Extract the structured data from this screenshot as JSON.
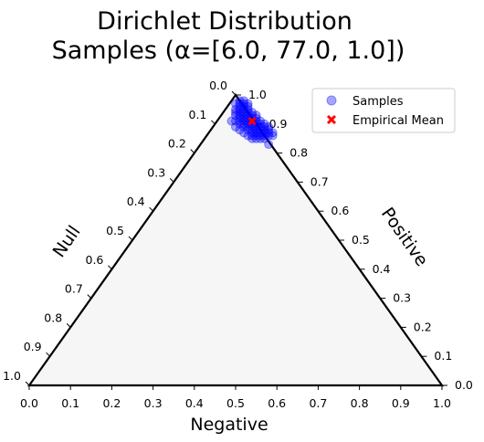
{
  "chart_data": {
    "type": "scatter",
    "title_lines": [
      "Dirichlet Distribution",
      "Samples (α=[6.0, 77.0, 1.0])"
    ],
    "bottom_axis_label": "Negative",
    "left_axis_label": "Null",
    "right_axis_label": "Positive",
    "tick_values": [
      0.0,
      0.1,
      0.2,
      0.3,
      0.4,
      0.5,
      0.6,
      0.7,
      0.8,
      0.9,
      1.0
    ],
    "tick_labels": [
      "0.0",
      "0.1",
      "0.2",
      "0.3",
      "0.4",
      "0.5",
      "0.6",
      "0.7",
      "0.8",
      "0.9",
      "1.0"
    ],
    "series": [
      {
        "name": "Samples",
        "color": "#0000ff",
        "marker": "circle",
        "points": [
          {
            "x": 0.52,
            "y": 0.91
          },
          {
            "x": 0.53,
            "y": 0.92
          },
          {
            "x": 0.51,
            "y": 0.94
          },
          {
            "x": 0.54,
            "y": 0.9
          },
          {
            "x": 0.55,
            "y": 0.89
          },
          {
            "x": 0.52,
            "y": 0.93
          },
          {
            "x": 0.53,
            "y": 0.95
          },
          {
            "x": 0.51,
            "y": 0.96
          },
          {
            "x": 0.52,
            "y": 0.97
          },
          {
            "x": 0.56,
            "y": 0.88
          },
          {
            "x": 0.57,
            "y": 0.87
          },
          {
            "x": 0.55,
            "y": 0.86
          },
          {
            "x": 0.54,
            "y": 0.87
          },
          {
            "x": 0.53,
            "y": 0.88
          },
          {
            "x": 0.52,
            "y": 0.89
          },
          {
            "x": 0.5,
            "y": 0.95
          },
          {
            "x": 0.51,
            "y": 0.92
          },
          {
            "x": 0.5,
            "y": 0.93
          },
          {
            "x": 0.53,
            "y": 0.93
          },
          {
            "x": 0.54,
            "y": 0.92
          },
          {
            "x": 0.55,
            "y": 0.91
          },
          {
            "x": 0.56,
            "y": 0.9
          },
          {
            "x": 0.57,
            "y": 0.89
          },
          {
            "x": 0.58,
            "y": 0.88
          },
          {
            "x": 0.59,
            "y": 0.87
          },
          {
            "x": 0.58,
            "y": 0.87
          },
          {
            "x": 0.57,
            "y": 0.88
          },
          {
            "x": 0.56,
            "y": 0.87
          },
          {
            "x": 0.55,
            "y": 0.88
          },
          {
            "x": 0.54,
            "y": 0.89
          },
          {
            "x": 0.53,
            "y": 0.9
          },
          {
            "x": 0.52,
            "y": 0.95
          },
          {
            "x": 0.51,
            "y": 0.95
          },
          {
            "x": 0.51,
            "y": 0.9
          },
          {
            "x": 0.5,
            "y": 0.91
          },
          {
            "x": 0.52,
            "y": 0.87
          },
          {
            "x": 0.53,
            "y": 0.86
          },
          {
            "x": 0.54,
            "y": 0.85
          },
          {
            "x": 0.56,
            "y": 0.85
          },
          {
            "x": 0.53,
            "y": 0.94
          },
          {
            "x": 0.55,
            "y": 0.93
          },
          {
            "x": 0.54,
            "y": 0.94
          },
          {
            "x": 0.52,
            "y": 0.96
          },
          {
            "x": 0.51,
            "y": 0.97
          },
          {
            "x": 0.5,
            "y": 0.97
          },
          {
            "x": 0.53,
            "y": 0.96
          },
          {
            "x": 0.54,
            "y": 0.91
          },
          {
            "x": 0.55,
            "y": 0.9
          },
          {
            "x": 0.56,
            "y": 0.89
          },
          {
            "x": 0.57,
            "y": 0.9
          },
          {
            "x": 0.58,
            "y": 0.89
          },
          {
            "x": 0.52,
            "y": 0.92
          },
          {
            "x": 0.51,
            "y": 0.93
          },
          {
            "x": 0.5,
            "y": 0.89
          },
          {
            "x": 0.51,
            "y": 0.88
          },
          {
            "x": 0.53,
            "y": 0.91
          },
          {
            "x": 0.54,
            "y": 0.88
          },
          {
            "x": 0.56,
            "y": 0.86
          },
          {
            "x": 0.58,
            "y": 0.86
          },
          {
            "x": 0.59,
            "y": 0.86
          },
          {
            "x": 0.57,
            "y": 0.85
          },
          {
            "x": 0.55,
            "y": 0.85
          },
          {
            "x": 0.52,
            "y": 0.94
          },
          {
            "x": 0.53,
            "y": 0.97
          },
          {
            "x": 0.52,
            "y": 0.98
          },
          {
            "x": 0.51,
            "y": 0.98
          },
          {
            "x": 0.55,
            "y": 0.87
          },
          {
            "x": 0.54,
            "y": 0.86
          },
          {
            "x": 0.56,
            "y": 0.91
          },
          {
            "x": 0.53,
            "y": 0.89
          },
          {
            "x": 0.55,
            "y": 0.92
          },
          {
            "x": 0.52,
            "y": 0.9
          },
          {
            "x": 0.54,
            "y": 0.93
          },
          {
            "x": 0.5,
            "y": 0.94
          },
          {
            "x": 0.51,
            "y": 0.91
          },
          {
            "x": 0.57,
            "y": 0.86
          },
          {
            "x": 0.49,
            "y": 0.91
          },
          {
            "x": 0.58,
            "y": 0.83
          }
        ]
      },
      {
        "name": "Empirical Mean",
        "color": "#ff0000",
        "marker": "x",
        "points": [
          {
            "x": 0.54,
            "y": 0.91
          }
        ]
      }
    ],
    "legend_position": "top-right",
    "grid": false
  }
}
